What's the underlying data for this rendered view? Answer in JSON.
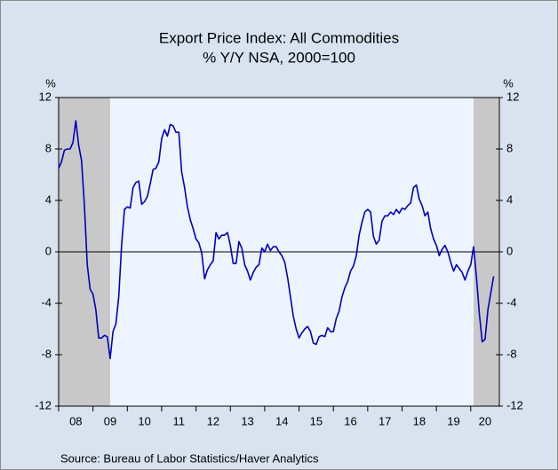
{
  "chart_data": {
    "type": "line",
    "title": "Export Price Index: All Commodities",
    "subtitle": "% Y/Y   NSA, 2000=100",
    "y_label": "%",
    "y2_label": "%",
    "source": "Source:  Bureau of Labor Statistics/Haver Analytics",
    "xlim": [
      2008,
      2020.833
    ],
    "xticks": [
      {
        "value": 2008,
        "label": "08"
      },
      {
        "value": 2009,
        "label": "09"
      },
      {
        "value": 2010,
        "label": "10"
      },
      {
        "value": 2011,
        "label": "11"
      },
      {
        "value": 2012,
        "label": "12"
      },
      {
        "value": 2013,
        "label": "13"
      },
      {
        "value": 2014,
        "label": "14"
      },
      {
        "value": 2015,
        "label": "15"
      },
      {
        "value": 2016,
        "label": "16"
      },
      {
        "value": 2017,
        "label": "17"
      },
      {
        "value": 2018,
        "label": "18"
      },
      {
        "value": 2019,
        "label": "19"
      },
      {
        "value": 2020,
        "label": "20"
      }
    ],
    "ylim": [
      -12,
      12
    ],
    "yticks": [
      12,
      8,
      4,
      0,
      -4,
      -8,
      -12
    ],
    "y2lim": [
      -12,
      12
    ],
    "y2ticks": [
      12,
      8,
      4,
      0,
      -4,
      -8,
      -12
    ],
    "recessions": [
      [
        2007.917,
        2009.5
      ],
      [
        2020.083,
        2020.833
      ]
    ],
    "recession_color": "#c8c8c8",
    "x": [
      2008.0,
      2008.083,
      2008.167,
      2008.25,
      2008.333,
      2008.417,
      2008.5,
      2008.583,
      2008.667,
      2008.75,
      2008.833,
      2008.917,
      2009.0,
      2009.083,
      2009.167,
      2009.25,
      2009.333,
      2009.417,
      2009.5,
      2009.583,
      2009.667,
      2009.75,
      2009.833,
      2009.917,
      2010.0,
      2010.083,
      2010.167,
      2010.25,
      2010.333,
      2010.417,
      2010.5,
      2010.583,
      2010.667,
      2010.75,
      2010.833,
      2010.917,
      2011.0,
      2011.083,
      2011.167,
      2011.25,
      2011.333,
      2011.417,
      2011.5,
      2011.583,
      2011.667,
      2011.75,
      2011.833,
      2011.917,
      2012.0,
      2012.083,
      2012.167,
      2012.25,
      2012.333,
      2012.417,
      2012.5,
      2012.583,
      2012.667,
      2012.75,
      2012.833,
      2012.917,
      2013.0,
      2013.083,
      2013.167,
      2013.25,
      2013.333,
      2013.417,
      2013.5,
      2013.583,
      2013.667,
      2013.75,
      2013.833,
      2013.917,
      2014.0,
      2014.083,
      2014.167,
      2014.25,
      2014.333,
      2014.417,
      2014.5,
      2014.583,
      2014.667,
      2014.75,
      2014.833,
      2014.917,
      2015.0,
      2015.083,
      2015.167,
      2015.25,
      2015.333,
      2015.417,
      2015.5,
      2015.583,
      2015.667,
      2015.75,
      2015.833,
      2015.917,
      2016.0,
      2016.083,
      2016.167,
      2016.25,
      2016.333,
      2016.417,
      2016.5,
      2016.583,
      2016.667,
      2016.75,
      2016.833,
      2016.917,
      2017.0,
      2017.083,
      2017.167,
      2017.25,
      2017.333,
      2017.417,
      2017.5,
      2017.583,
      2017.667,
      2017.75,
      2017.833,
      2017.917,
      2018.0,
      2018.083,
      2018.167,
      2018.25,
      2018.333,
      2018.417,
      2018.5,
      2018.583,
      2018.667,
      2018.75,
      2018.833,
      2018.917,
      2019.0,
      2019.083,
      2019.167,
      2019.25,
      2019.333,
      2019.417,
      2019.5,
      2019.583,
      2019.667,
      2019.75,
      2019.833,
      2019.917,
      2020.0,
      2020.083,
      2020.167,
      2020.25,
      2020.333,
      2020.417,
      2020.5,
      2020.583,
      2020.667
    ],
    "series": [
      {
        "color": "#0000c0",
        "values": [
          6.5,
          7.0,
          7.9,
          8.0,
          8.0,
          8.5,
          10.2,
          8.3,
          7.1,
          3.6,
          -1.0,
          -2.9,
          -3.3,
          -4.5,
          -6.7,
          -6.7,
          -6.5,
          -6.6,
          -8.3,
          -6.2,
          -5.6,
          -3.5,
          0.5,
          3.3,
          3.5,
          3.4,
          5.0,
          5.4,
          5.5,
          3.7,
          3.9,
          4.3,
          5.3,
          6.4,
          6.5,
          7.0,
          8.8,
          9.5,
          9.0,
          9.9,
          9.8,
          9.3,
          9.3,
          6.2,
          5.0,
          3.5,
          2.5,
          1.8,
          1.0,
          0.7,
          -0.1,
          -2.1,
          -1.4,
          -1.0,
          -0.7,
          1.5,
          1.0,
          1.3,
          1.3,
          1.5,
          0.5,
          -0.9,
          -0.9,
          0.8,
          0.3,
          -1.0,
          -1.5,
          -2.2,
          -1.6,
          -1.2,
          -1.0,
          0.3,
          0.0,
          0.6,
          0.1,
          0.4,
          0.4,
          0.0,
          -0.3,
          -0.8,
          -2.0,
          -3.5,
          -5.0,
          -6.0,
          -6.7,
          -6.3,
          -6.0,
          -5.8,
          -6.2,
          -7.1,
          -7.2,
          -6.6,
          -6.5,
          -6.6,
          -5.9,
          -6.2,
          -6.2,
          -5.2,
          -4.6,
          -3.5,
          -2.8,
          -2.3,
          -1.5,
          -1.1,
          -0.3,
          1.3,
          2.3,
          3.1,
          3.3,
          3.1,
          1.2,
          0.6,
          0.9,
          2.4,
          2.8,
          2.8,
          3.1,
          2.9,
          3.3,
          3.0,
          3.4,
          3.3,
          3.6,
          3.8,
          5.0,
          5.2,
          4.1,
          3.6,
          2.8,
          3.1,
          1.8,
          1.0,
          0.5,
          -0.3,
          0.2,
          0.5,
          0.0,
          -0.8,
          -1.5,
          -1.0,
          -1.3,
          -1.6,
          -2.2,
          -1.5,
          -1.0,
          0.4,
          -2.0,
          -4.8,
          -7.0,
          -6.8,
          -4.5,
          -3.2,
          -1.9
        ]
      }
    ]
  }
}
